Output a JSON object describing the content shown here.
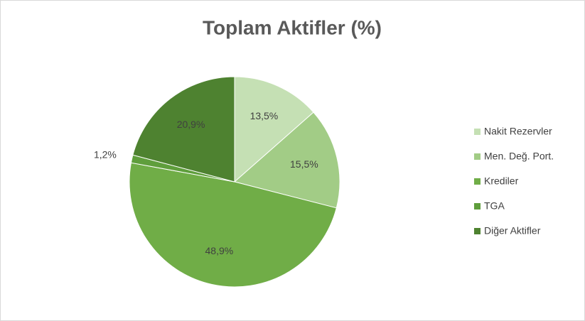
{
  "chart_data": {
    "type": "pie",
    "title": "Toplam Aktifler (%)",
    "categories": [
      "Nakit Rezervler",
      "Men. Değ. Port.",
      "Krediler",
      "TGA",
      "Diğer Aktifler"
    ],
    "values": [
      13.5,
      15.5,
      48.9,
      1.2,
      20.9
    ],
    "value_labels": [
      "13,5%",
      "15,5%",
      "48,9%",
      "1,2%",
      "20,9%"
    ],
    "colors": [
      "#c5e0b4",
      "#a2cc86",
      "#70ad47",
      "#5f9e3c",
      "#4e8230"
    ],
    "legend": "right"
  }
}
